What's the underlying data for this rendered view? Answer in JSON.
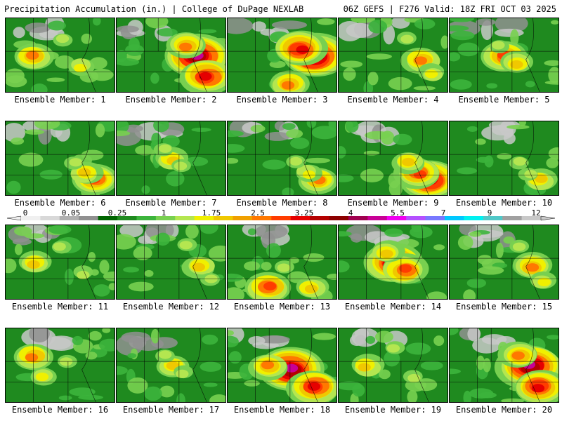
{
  "header": {
    "left": "Precipitation Accumulation (in.) | College of DuPage NEXLAB",
    "right": "06Z GEFS | F276 Valid: 18Z FRI OCT 03 2025"
  },
  "member_label_prefix": "Ensemble Member:",
  "members": [
    {
      "label": "Ensemble Member: 1",
      "intensity": 0.45,
      "pattern": "scattered"
    },
    {
      "label": "Ensemble Member: 2",
      "intensity": 0.85,
      "pattern": "east-heavy"
    },
    {
      "label": "Ensemble Member: 3",
      "intensity": 0.8,
      "pattern": "northeast-max"
    },
    {
      "label": "Ensemble Member: 4",
      "intensity": 0.45,
      "pattern": "east"
    },
    {
      "label": "Ensemble Member: 5",
      "intensity": 0.5,
      "pattern": "central"
    },
    {
      "label": "Ensemble Member: 6",
      "intensity": 0.5,
      "pattern": "southeast"
    },
    {
      "label": "Ensemble Member: 7",
      "intensity": 0.4,
      "pattern": "central"
    },
    {
      "label": "Ensemble Member: 8",
      "intensity": 0.45,
      "pattern": "southeast"
    },
    {
      "label": "Ensemble Member: 9",
      "intensity": 0.7,
      "pattern": "southeast"
    },
    {
      "label": "Ensemble Member: 10",
      "intensity": 0.4,
      "pattern": "southeast"
    },
    {
      "label": "Ensemble Member: 11",
      "intensity": 0.35,
      "pattern": "scattered"
    },
    {
      "label": "Ensemble Member: 12",
      "intensity": 0.35,
      "pattern": "east"
    },
    {
      "label": "Ensemble Member: 13",
      "intensity": 0.55,
      "pattern": "south"
    },
    {
      "label": "Ensemble Member: 14",
      "intensity": 0.75,
      "pattern": "central"
    },
    {
      "label": "Ensemble Member: 15",
      "intensity": 0.45,
      "pattern": "east"
    },
    {
      "label": "Ensemble Member: 16",
      "intensity": 0.45,
      "pattern": "west"
    },
    {
      "label": "Ensemble Member: 17",
      "intensity": 0.4,
      "pattern": "central"
    },
    {
      "label": "Ensemble Member: 18",
      "intensity": 0.8,
      "pattern": "band"
    },
    {
      "label": "Ensemble Member: 19",
      "intensity": 0.4,
      "pattern": "scattered"
    },
    {
      "label": "Ensemble Member: 20",
      "intensity": 0.85,
      "pattern": "east-heavy"
    }
  ],
  "colorbar": {
    "ticks": [
      "0",
      "0.05",
      "0.25",
      "1",
      "1.75",
      "2.5",
      "3.25",
      "4",
      "5.5",
      "7",
      "9",
      "12"
    ],
    "colors": [
      "#f0f0f0",
      "#d8d8d8",
      "#b0b0b0",
      "#909090",
      "#006400",
      "#1f8a1f",
      "#3cb43c",
      "#78d050",
      "#b4e650",
      "#f0f000",
      "#f0c800",
      "#f0a000",
      "#ff7800",
      "#ff3c00",
      "#e60000",
      "#b40000",
      "#8c0000",
      "#a00050",
      "#c80096",
      "#f000f0",
      "#b450ff",
      "#7878ff",
      "#00c8ff",
      "#00f0f0",
      "#50c8c8",
      "#a0a0a0",
      "#c8c8c8"
    ]
  }
}
